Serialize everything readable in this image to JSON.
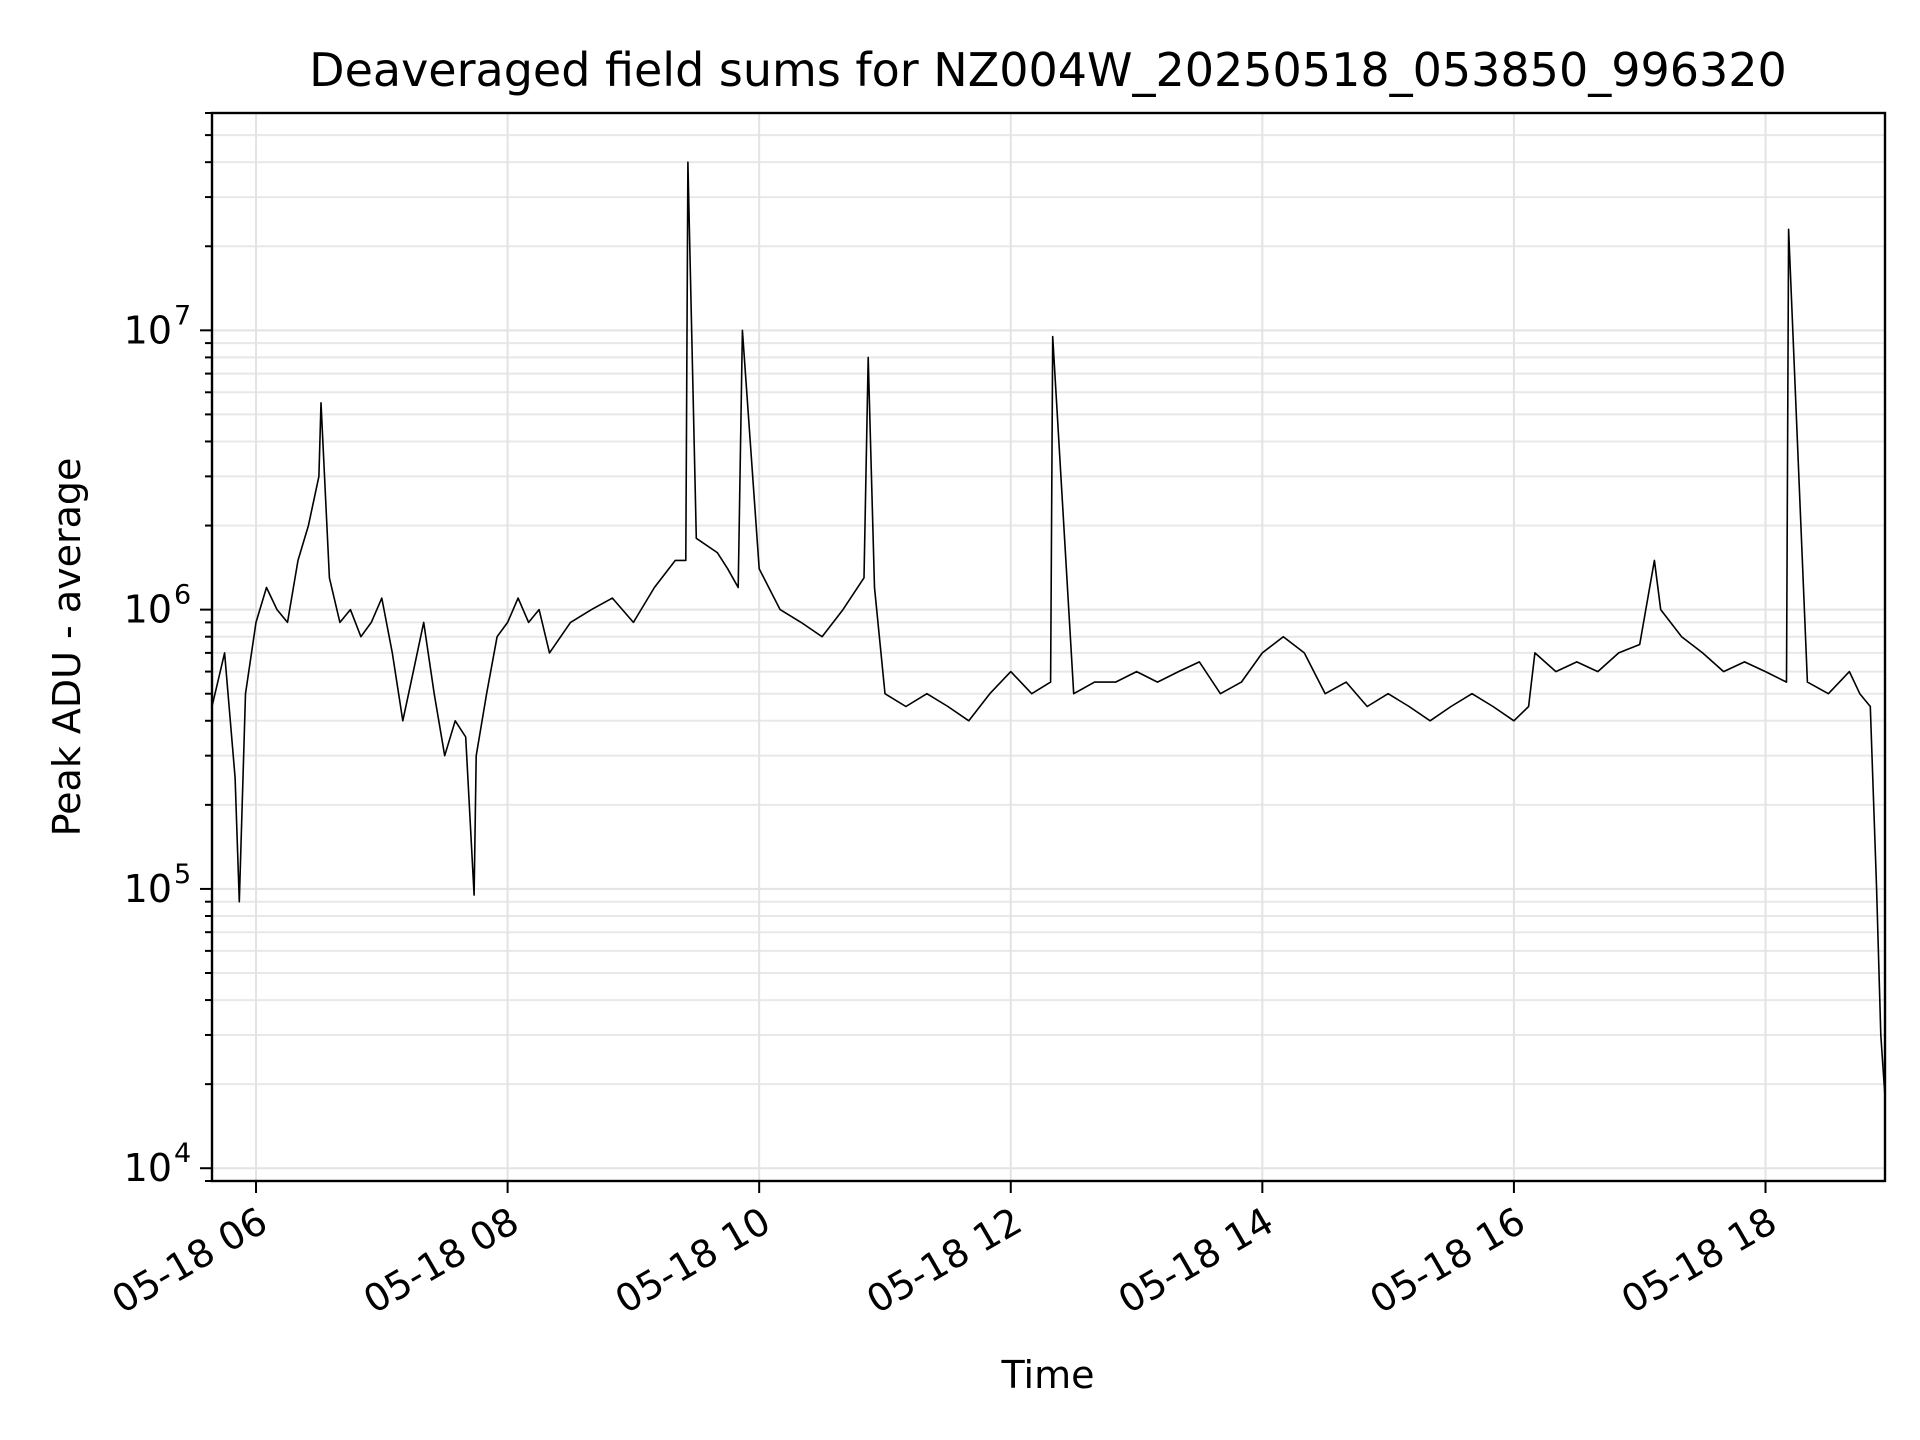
{
  "chart_data": {
    "type": "line",
    "title": "Deaveraged field sums for NZ004W_20250518_053850_996320",
    "xlabel": "Time",
    "ylabel": "Peak ADU - average",
    "y_scale": "log",
    "grid": "on (major and minor)",
    "legend": "none",
    "series_color": "#000000",
    "xlim": [
      "2025-05-18 05:39",
      "2025-05-18 18:57"
    ],
    "ylim": [
      9000,
      60000000
    ],
    "x_ticks": [
      {
        "value": "2025-05-18 06:00",
        "label": "05-18 06"
      },
      {
        "value": "2025-05-18 08:00",
        "label": "05-18 08"
      },
      {
        "value": "2025-05-18 10:00",
        "label": "05-18 10"
      },
      {
        "value": "2025-05-18 12:00",
        "label": "05-18 12"
      },
      {
        "value": "2025-05-18 14:00",
        "label": "05-18 14"
      },
      {
        "value": "2025-05-18 16:00",
        "label": "05-18 16"
      },
      {
        "value": "2025-05-18 18:00",
        "label": "05-18 18"
      }
    ],
    "y_ticks": [
      {
        "value": 10000,
        "base": "10",
        "exp": "4"
      },
      {
        "value": 100000,
        "base": "10",
        "exp": "5"
      },
      {
        "value": 1000000,
        "base": "10",
        "exp": "6"
      },
      {
        "value": 10000000,
        "base": "10",
        "exp": "7"
      }
    ],
    "series": [
      {
        "x": [
          "05:39",
          "05:45",
          "05:50",
          "05:52",
          "05:55",
          "06:00",
          "06:05",
          "06:10",
          "06:15",
          "06:20",
          "06:25",
          "06:30",
          "06:31",
          "06:35",
          "06:40",
          "06:45",
          "06:50",
          "06:55",
          "07:00",
          "07:05",
          "07:10",
          "07:15",
          "07:20",
          "07:25",
          "07:30",
          "07:35",
          "07:40",
          "07:44",
          "07:45",
          "07:50",
          "07:55",
          "08:00",
          "08:05",
          "08:10",
          "08:15",
          "08:20",
          "08:30",
          "08:40",
          "08:50",
          "09:00",
          "09:10",
          "09:20",
          "09:25",
          "09:26",
          "09:30",
          "09:40",
          "09:45",
          "09:50",
          "09:52",
          "10:00",
          "10:10",
          "10:20",
          "10:30",
          "10:40",
          "10:50",
          "10:52",
          "10:55",
          "11:00",
          "11:10",
          "11:20",
          "11:30",
          "11:40",
          "11:50",
          "12:00",
          "12:10",
          "12:19",
          "12:20",
          "12:30",
          "12:40",
          "12:50",
          "13:00",
          "13:10",
          "13:20",
          "13:30",
          "13:40",
          "13:50",
          "14:00",
          "14:10",
          "14:20",
          "14:30",
          "14:40",
          "14:50",
          "15:00",
          "15:10",
          "15:20",
          "15:30",
          "15:40",
          "15:50",
          "16:00",
          "16:07",
          "16:10",
          "16:20",
          "16:30",
          "16:40",
          "16:50",
          "17:00",
          "17:07",
          "17:10",
          "17:20",
          "17:30",
          "17:40",
          "17:50",
          "18:00",
          "18:10",
          "18:11",
          "18:20",
          "18:30",
          "18:40",
          "18:45",
          "18:50",
          "18:53",
          "18:55",
          "18:57"
        ],
        "y": [
          450000,
          700000,
          250000,
          90000,
          500000,
          900000,
          1200000,
          1000000,
          900000,
          1500000,
          2000000,
          3000000,
          5500000,
          1300000,
          900000,
          1000000,
          800000,
          900000,
          1100000,
          700000,
          400000,
          600000,
          900000,
          500000,
          300000,
          400000,
          350000,
          95000,
          300000,
          500000,
          800000,
          900000,
          1100000,
          900000,
          1000000,
          700000,
          900000,
          1000000,
          1100000,
          900000,
          1200000,
          1500000,
          1500000,
          40000000,
          1800000,
          1600000,
          1400000,
          1200000,
          10000000,
          1400000,
          1000000,
          900000,
          800000,
          1000000,
          1300000,
          8000000,
          1200000,
          500000,
          450000,
          500000,
          450000,
          400000,
          500000,
          600000,
          500000,
          550000,
          9500000,
          500000,
          550000,
          550000,
          600000,
          550000,
          600000,
          650000,
          500000,
          550000,
          700000,
          800000,
          700000,
          500000,
          550000,
          450000,
          500000,
          450000,
          400000,
          450000,
          500000,
          450000,
          400000,
          450000,
          700000,
          600000,
          650000,
          600000,
          700000,
          750000,
          1500000,
          1000000,
          800000,
          700000,
          600000,
          650000,
          600000,
          550000,
          23000000,
          550000,
          500000,
          600000,
          500000,
          450000,
          100000,
          30000,
          18000
        ]
      }
    ]
  }
}
